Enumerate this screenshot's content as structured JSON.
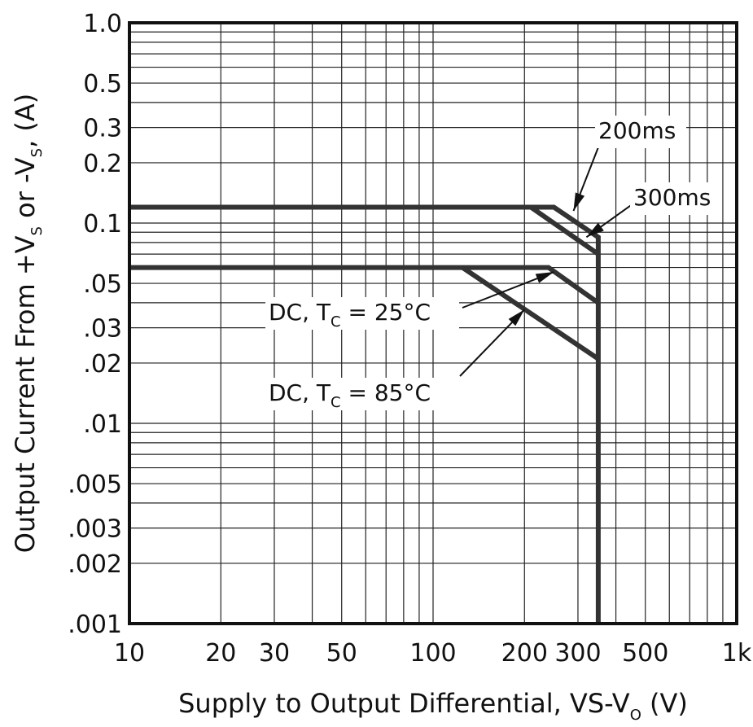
{
  "chart_data": {
    "type": "line",
    "x_scale": "log",
    "y_scale": "log",
    "xlim": [
      10,
      1000
    ],
    "ylim": [
      0.001,
      1.0
    ],
    "grid": true,
    "x_ticks": [
      {
        "value": 10,
        "label": "10"
      },
      {
        "value": 20,
        "label": "20"
      },
      {
        "value": 30,
        "label": "30"
      },
      {
        "value": 50,
        "label": "50"
      },
      {
        "value": 100,
        "label": "100"
      },
      {
        "value": 200,
        "label": "200"
      },
      {
        "value": 300,
        "label": "300"
      },
      {
        "value": 500,
        "label": "500"
      },
      {
        "value": 1000,
        "label": "1k"
      }
    ],
    "y_ticks": [
      {
        "value": 1.0,
        "label": "1.0"
      },
      {
        "value": 0.5,
        "label": "0.5"
      },
      {
        "value": 0.3,
        "label": "0.3"
      },
      {
        "value": 0.2,
        "label": "0.2"
      },
      {
        "value": 0.1,
        "label": "0.1"
      },
      {
        "value": 0.05,
        "label": ".05"
      },
      {
        "value": 0.03,
        "label": ".03"
      },
      {
        "value": 0.02,
        "label": ".02"
      },
      {
        "value": 0.01,
        "label": ".01"
      },
      {
        "value": 0.005,
        "label": ".005"
      },
      {
        "value": 0.003,
        "label": ".003"
      },
      {
        "value": 0.002,
        "label": ".002"
      },
      {
        "value": 0.001,
        "label": ".001"
      }
    ],
    "xlabel": {
      "main": "Supply to Output Differential, VS-V",
      "sub": "O",
      "tail": " (V)"
    },
    "ylabel": {
      "p1": "Output Current From +V",
      "s1": "S",
      "p2": " or -V",
      "s2": "S",
      "p3": ", (A)"
    },
    "series": [
      {
        "name": "200ms",
        "x": [
          10,
          250,
          350,
          350
        ],
        "y": [
          0.12,
          0.12,
          0.085,
          0.001
        ]
      },
      {
        "name": "300ms",
        "x": [
          210,
          350
        ],
        "y": [
          0.12,
          0.07
        ]
      },
      {
        "name": "DC, T_C = 25°C",
        "x": [
          10,
          240,
          350
        ],
        "y": [
          0.06,
          0.06,
          0.04
        ]
      },
      {
        "name": "DC, T_C = 85°C",
        "x": [
          125,
          350
        ],
        "y": [
          0.06,
          0.021
        ]
      }
    ],
    "annotations": [
      {
        "label": "200ms",
        "points_to": [
          290,
          0.115
        ]
      },
      {
        "label": "300ms",
        "points_to": [
          320,
          0.085
        ]
      },
      {
        "label": {
          "pre": "DC, T",
          "sub": "C",
          "post": " = 25°C"
        },
        "points_to": [
          250,
          0.057
        ]
      },
      {
        "label": {
          "pre": "DC, T",
          "sub": "C",
          "post": " = 85°C"
        },
        "points_to": [
          200,
          0.037
        ]
      }
    ]
  }
}
